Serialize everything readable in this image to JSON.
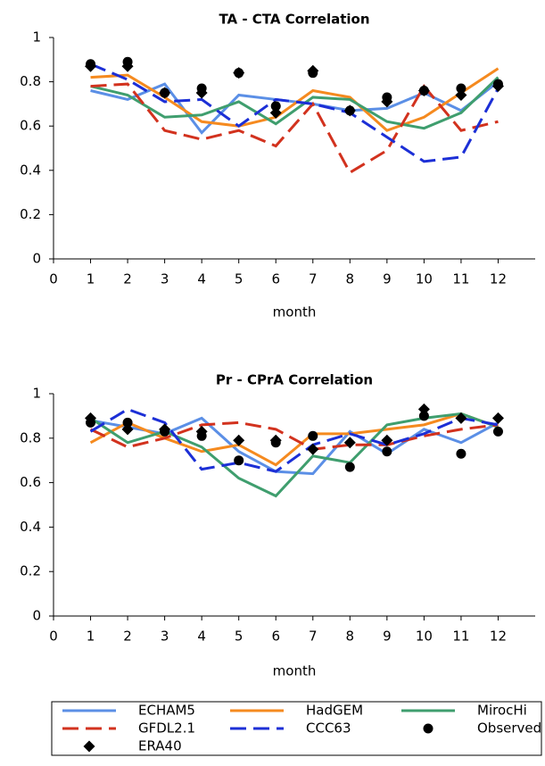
{
  "chart_data": [
    {
      "type": "line",
      "title": "TA - CTA Correlation",
      "xlabel": "month",
      "x": [
        1,
        2,
        3,
        4,
        5,
        6,
        7,
        8,
        9,
        10,
        11,
        12
      ],
      "xlim": [
        0,
        13
      ],
      "xticks": [
        0,
        1,
        2,
        3,
        4,
        5,
        6,
        7,
        8,
        9,
        10,
        11,
        12
      ],
      "ylim": [
        0,
        1
      ],
      "yticks": [
        0,
        0.2,
        0.4,
        0.6,
        0.8,
        1
      ],
      "series": [
        {
          "name": "ECHAM5",
          "color": "#5b8fe6",
          "style": "solid",
          "values": [
            0.76,
            0.72,
            0.79,
            0.57,
            0.74,
            0.72,
            0.7,
            0.67,
            0.68,
            0.75,
            0.67,
            0.8
          ]
        },
        {
          "name": "HadGEM",
          "color": "#f58a1f",
          "style": "solid",
          "values": [
            0.82,
            0.83,
            0.73,
            0.62,
            0.6,
            0.64,
            0.76,
            0.73,
            0.58,
            0.64,
            0.75,
            0.86
          ]
        },
        {
          "name": "MirocHi",
          "color": "#3f9e6e",
          "style": "solid",
          "values": [
            0.78,
            0.74,
            0.64,
            0.65,
            0.71,
            0.61,
            0.73,
            0.72,
            0.62,
            0.59,
            0.66,
            0.82
          ]
        },
        {
          "name": "GFDL2.1",
          "color": "#d2321e",
          "style": "dashed",
          "values": [
            0.78,
            0.79,
            0.58,
            0.54,
            0.58,
            0.51,
            0.7,
            0.39,
            0.49,
            0.78,
            0.58,
            0.62
          ]
        },
        {
          "name": "CCC63",
          "color": "#1c2fd6",
          "style": "dashed",
          "values": [
            0.88,
            0.81,
            0.71,
            0.72,
            0.6,
            0.72,
            0.7,
            0.66,
            0.55,
            0.44,
            0.46,
            0.77
          ]
        },
        {
          "name": "Observed",
          "color": "#000000",
          "style": "circle",
          "values": [
            0.88,
            0.89,
            0.75,
            0.77,
            0.84,
            0.69,
            0.84,
            0.67,
            0.73,
            0.76,
            0.77,
            0.79
          ]
        },
        {
          "name": "ERA40",
          "color": "#000000",
          "style": "diamond",
          "values": [
            0.87,
            0.87,
            0.75,
            0.75,
            0.84,
            0.66,
            0.85,
            0.67,
            0.71,
            0.76,
            0.74,
            0.78
          ]
        }
      ]
    },
    {
      "type": "line",
      "title": "Pr - CPrA Correlation",
      "xlabel": "month",
      "x": [
        1,
        2,
        3,
        4,
        5,
        6,
        7,
        8,
        9,
        10,
        11,
        12
      ],
      "xlim": [
        0,
        13
      ],
      "xticks": [
        0,
        1,
        2,
        3,
        4,
        5,
        6,
        7,
        8,
        9,
        10,
        11,
        12
      ],
      "ylim": [
        0,
        1
      ],
      "yticks": [
        0,
        0.2,
        0.4,
        0.6,
        0.8,
        1
      ],
      "series": [
        {
          "name": "ECHAM5",
          "color": "#5b8fe6",
          "style": "solid",
          "values": [
            0.88,
            0.85,
            0.82,
            0.89,
            0.74,
            0.65,
            0.64,
            0.83,
            0.73,
            0.84,
            0.78,
            0.87
          ]
        },
        {
          "name": "HadGEM",
          "color": "#f58a1f",
          "style": "solid",
          "values": [
            0.78,
            0.87,
            0.8,
            0.74,
            0.77,
            0.68,
            0.82,
            0.82,
            0.84,
            0.86,
            0.91,
            0.85
          ]
        },
        {
          "name": "MirocHi",
          "color": "#3f9e6e",
          "style": "solid",
          "values": [
            0.89,
            0.78,
            0.83,
            0.76,
            0.62,
            0.54,
            0.72,
            0.69,
            0.86,
            0.89,
            0.91,
            0.85
          ]
        },
        {
          "name": "GFDL2.1",
          "color": "#d2321e",
          "style": "dashed",
          "values": [
            0.84,
            0.76,
            0.8,
            0.86,
            0.87,
            0.84,
            0.75,
            0.77,
            0.77,
            0.81,
            0.84,
            0.86
          ]
        },
        {
          "name": "CCC63",
          "color": "#1c2fd6",
          "style": "dashed",
          "values": [
            0.83,
            0.93,
            0.87,
            0.66,
            0.69,
            0.65,
            0.77,
            0.82,
            0.77,
            0.82,
            0.89,
            0.86
          ]
        },
        {
          "name": "Observed",
          "color": "#000000",
          "style": "circle",
          "values": [
            0.87,
            0.87,
            0.83,
            0.81,
            0.7,
            0.78,
            0.81,
            0.67,
            0.74,
            0.9,
            0.73,
            0.83
          ]
        },
        {
          "name": "ERA40",
          "color": "#000000",
          "style": "diamond",
          "values": [
            0.89,
            0.84,
            0.84,
            0.83,
            0.79,
            0.79,
            0.75,
            0.78,
            0.79,
            0.93,
            0.89,
            0.89
          ]
        }
      ]
    }
  ]
}
